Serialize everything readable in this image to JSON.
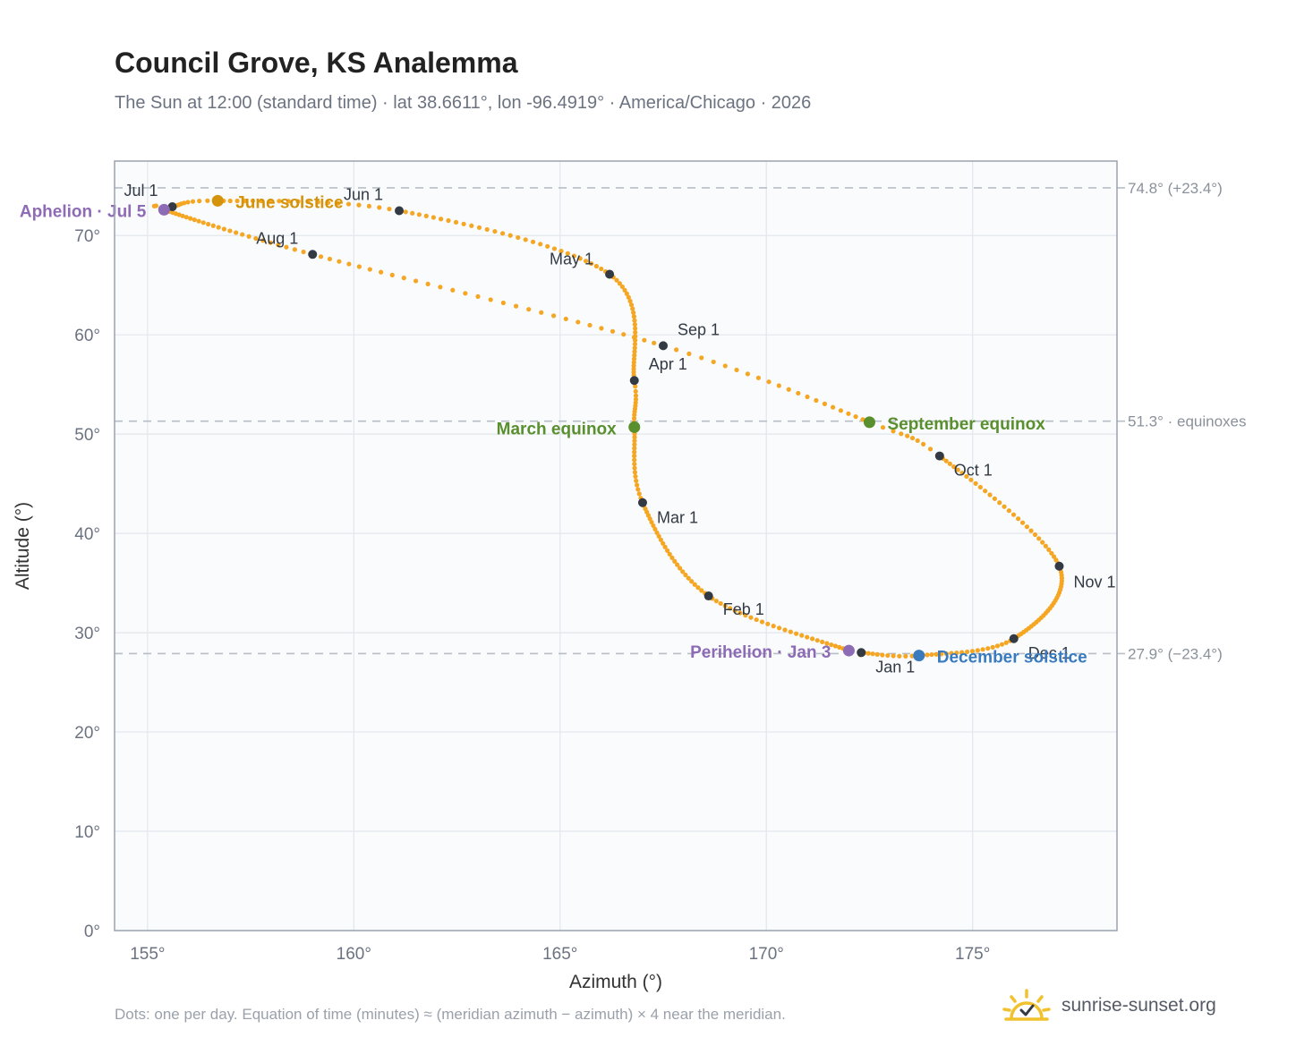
{
  "header": {
    "title": "Council Grove, KS Analemma",
    "subtitle": "The Sun at 12:00 (standard time) · lat 38.6611°, lon -96.4919° · America/Chicago · 2026"
  },
  "footer": {
    "note": "Dots: one per day. Equation of time (minutes) ≈ (meridian azimuth − azimuth) × 4 near the meridian.",
    "brand": "sunrise-sunset.org",
    "brand_icon": "sun-check-icon"
  },
  "colors": {
    "curve": "#f5a623",
    "month_marker": "#333a44",
    "solstice_june": "#d4930a",
    "solstice_december": "#3a7bbf",
    "equinox": "#5a8f2e",
    "apsis": "#8e6bb5",
    "reference_line": "#b8bec6",
    "plot_background": "#f9fbfd",
    "grid": "#e3e7ec",
    "frame": "#9aa3af"
  },
  "chart_data": {
    "type": "scatter",
    "xlabel": "Azimuth (°)",
    "ylabel": "Altitude (°)",
    "xlim": [
      154.2,
      178.5
    ],
    "ylim": [
      0,
      77.5
    ],
    "x_ticks": [
      155,
      160,
      165,
      170,
      175
    ],
    "x_tick_labels": [
      "155°",
      "160°",
      "165°",
      "170°",
      "175°"
    ],
    "y_ticks": [
      0,
      10,
      20,
      30,
      40,
      50,
      60,
      70
    ],
    "y_tick_labels": [
      "0°",
      "10°",
      "20°",
      "30°",
      "40°",
      "50°",
      "60°",
      "70°"
    ],
    "grid": true,
    "month_markers": [
      {
        "label": "Jan 1",
        "day": 1,
        "azimuth": 172.3,
        "altitude": 28.0
      },
      {
        "label": "Feb 1",
        "day": 32,
        "azimuth": 168.6,
        "altitude": 33.7
      },
      {
        "label": "Mar 1",
        "day": 60,
        "azimuth": 167.0,
        "altitude": 43.1
      },
      {
        "label": "Apr 1",
        "day": 91,
        "azimuth": 166.8,
        "altitude": 55.4
      },
      {
        "label": "May 1",
        "day": 121,
        "azimuth": 166.2,
        "altitude": 66.1
      },
      {
        "label": "Jun 1",
        "day": 152,
        "azimuth": 161.1,
        "altitude": 72.5
      },
      {
        "label": "Jul 1",
        "day": 182,
        "azimuth": 155.6,
        "altitude": 72.9
      },
      {
        "label": "Aug 1",
        "day": 213,
        "azimuth": 159.0,
        "altitude": 68.1
      },
      {
        "label": "Sep 1",
        "day": 244,
        "azimuth": 167.5,
        "altitude": 58.9
      },
      {
        "label": "Oct 1",
        "day": 274,
        "azimuth": 174.2,
        "altitude": 47.8
      },
      {
        "label": "Nov 1",
        "day": 305,
        "azimuth": 177.1,
        "altitude": 36.7
      },
      {
        "label": "Dec 1",
        "day": 335,
        "azimuth": 176.0,
        "altitude": 29.4
      }
    ],
    "events": [
      {
        "label": "March equinox",
        "day": 79,
        "azimuth": 166.8,
        "altitude": 50.7,
        "color": "#5a8f2e"
      },
      {
        "label": "June solstice",
        "day": 172,
        "azimuth": 156.7,
        "altitude": 73.5,
        "color": "#d4930a"
      },
      {
        "label": "September equinox",
        "day": 265,
        "azimuth": 172.5,
        "altitude": 51.2,
        "color": "#5a8f2e"
      },
      {
        "label": "December solstice",
        "day": 355,
        "azimuth": 173.7,
        "altitude": 27.7,
        "color": "#3a7bbf"
      },
      {
        "label": "Perihelion · Jan 3",
        "day": 3,
        "azimuth": 172.0,
        "altitude": 28.2,
        "color": "#8e6bb5"
      },
      {
        "label": "Aphelion · Jul 5",
        "day": 186,
        "azimuth": 155.4,
        "altitude": 72.6,
        "color": "#8e6bb5"
      }
    ],
    "reference_lines": [
      {
        "altitude": 74.8,
        "label": "74.8° (+23.4°)"
      },
      {
        "altitude": 51.3,
        "label": "51.3° · equinoxes"
      },
      {
        "altitude": 27.9,
        "label": "27.9° (−23.4°)"
      }
    ]
  }
}
